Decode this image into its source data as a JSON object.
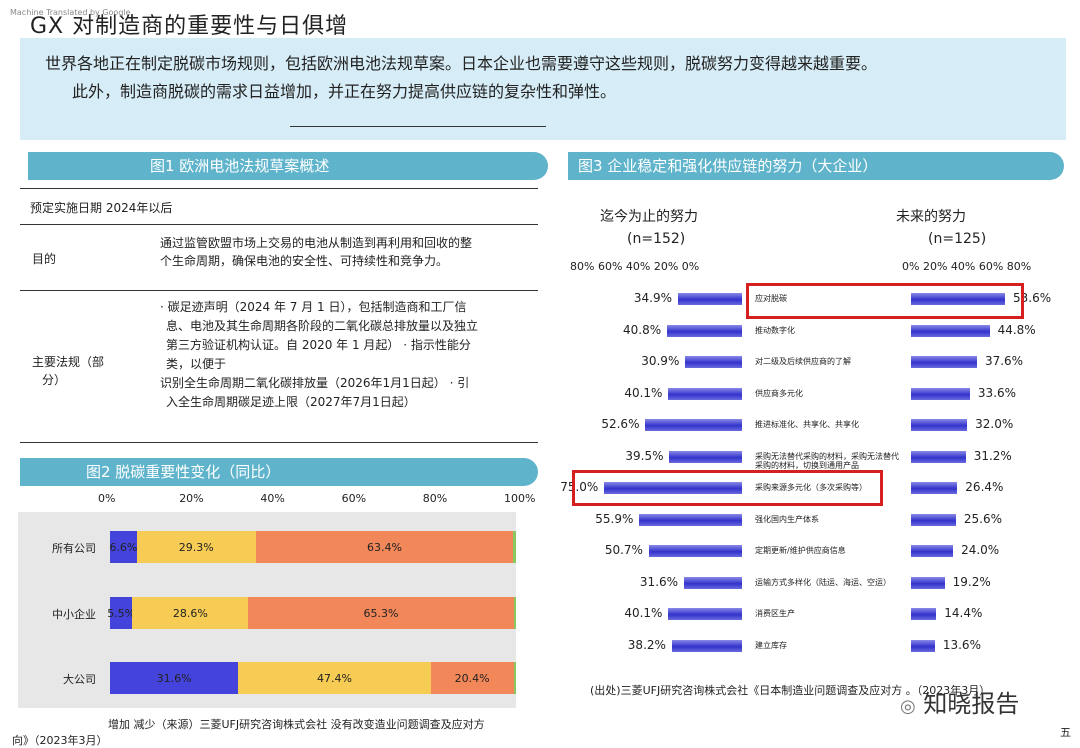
{
  "page": {
    "title": "GX 对制造商的重要性与日俱增",
    "watermark_text": "Machine Translated by Google",
    "summary_line1": "世界各地正在制定脱碳市场规则，包括欧洲电池法规草案。日本企业也需要遵守这些规则，脱碳努力变得越来越重要。",
    "summary_line2": "此外，制造商脱碳的需求日益增加，并正在努力提高供应链的复杂性和弹性。",
    "page_number": "五",
    "brand": "知晓报告",
    "footer_left": "向》（2023年3月）"
  },
  "fig1": {
    "title": "图1 欧洲电池法规草案概述",
    "planned_date": "预定实施日期 2024年以后",
    "purpose_label": "目的",
    "purpose_line1": "通过监管欧盟市场上交易的电池从制造到再利用和回收的整",
    "purpose_line2": "个生命周期，确保电池的安全性、可持续性和竞争力。",
    "regs_label_1": "主要法规（部",
    "regs_label_2": "分）",
    "regs_lines": [
      "· 碳足迹声明（2024 年 7 月 1 日），包括制造商和工厂信",
      "息、电池及其生命周期各阶段的二氧化碳总排放量以及独立",
      "第三方验证机构认证。自 2020 年 1 月起）  · 指示性能分",
      "类，以便于",
      "识别全生命周期二氧化碳排放量（2026年1月1日起）  · 引",
      "入全生命周期碳足迹上限（2027年7月1日起）"
    ]
  },
  "chart_data": [
    {
      "type": "bar",
      "orientation": "horizontal-stacked",
      "title": "图2 脱碳重要性变化（同比）",
      "x_ticks": [
        "0%",
        "20%",
        "40%",
        "60%",
        "80%",
        "100%"
      ],
      "xlim": [
        0,
        100
      ],
      "categories": [
        "所有公司",
        "中小企业",
        "大公司"
      ],
      "series": [
        {
          "values": [
            6.6,
            5.5,
            31.6
          ],
          "labels": [
            "6.6%",
            "5.5%",
            "31.6%"
          ],
          "color": "#4444dd"
        },
        {
          "values": [
            29.3,
            28.6,
            47.4
          ],
          "labels": [
            "29.3%",
            "28.6%",
            "47.4%"
          ],
          "color": "#f7cc55"
        },
        {
          "values": [
            63.4,
            65.3,
            20.4
          ],
          "labels": [
            "63.4%",
            "65.3%",
            "20.4%"
          ],
          "color": "#f2875a"
        },
        {
          "values": [
            0.7,
            0.6,
            0.6
          ],
          "color": "#88c860"
        }
      ],
      "legend_text": "增加 减少（来源）三菱UFJ研究咨询株式会社 没有改变造业问题调查及应对方"
    },
    {
      "type": "bar",
      "orientation": "horizontal-butterfly",
      "title": "图3 企业稳定和强化供应链的努力（大企业）",
      "left_heading": "迄今为止的努力",
      "left_n": "(n=152)",
      "right_heading": "未来的努力",
      "right_n": "(n=125)",
      "left_ticks": "80% 60% 40% 20% 0%",
      "right_ticks": "0% 20% 40% 60% 80%",
      "xlim": [
        0,
        80
      ],
      "categories": [
        "应对脱碳",
        "推动数字化",
        "对二级及后续供应商的了解",
        "供应商多元化",
        "推进标准化、共享化、共享化",
        "采购无法替代采购的材料，采购无法替代采购的材料，切换到通用产品",
        "采购来源多元化（多次采购等）",
        "强化国内生产体系",
        "定期更新/维护供应商信息",
        "运输方式多样化（陆运、海运、空运）",
        "消费区生产",
        "建立库存"
      ],
      "so_far": [
        34.9,
        40.8,
        30.9,
        40.1,
        52.6,
        39.5,
        75.0,
        55.9,
        50.7,
        31.6,
        40.1,
        38.2
      ],
      "so_far_labels": [
        "34.9%",
        "40.8%",
        "30.9%",
        "40.1%",
        "52.6%",
        "39.5%",
        "75.0%",
        "55.9%",
        "50.7%",
        "31.6%",
        "40.1%",
        "38.2%"
      ],
      "future": [
        53.6,
        44.8,
        37.6,
        33.6,
        32.0,
        31.2,
        26.4,
        25.6,
        24.0,
        19.2,
        14.4,
        13.6
      ],
      "future_labels": [
        "53.6%",
        "44.8%",
        "37.6%",
        "33.6%",
        "32.0%",
        "31.2%",
        "26.4%",
        "25.6%",
        "24.0%",
        "19.2%",
        "14.4%",
        "13.6%"
      ],
      "highlighted": [
        "应对脱碳",
        "采购来源多元化（多次采购等）"
      ],
      "highlight_color": "#d62020",
      "bar_color": "#3333cc",
      "source": "(出处)三菱UFJ研究咨询株式会社《日本制造业问题调查及应对方 。（2023年3月）"
    }
  ]
}
